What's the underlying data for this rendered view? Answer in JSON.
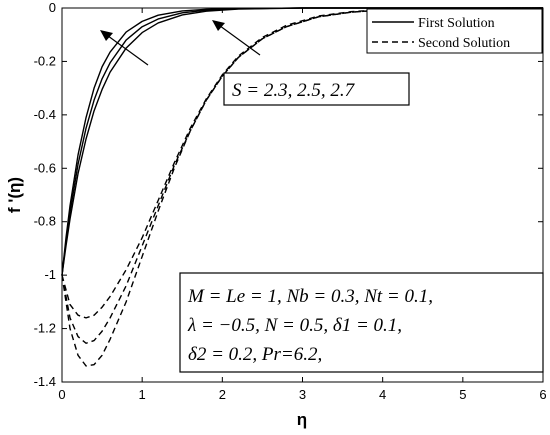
{
  "chart_data": {
    "type": "line",
    "xlabel": "η",
    "ylabel": "f '(η)",
    "xlim": [
      0,
      6
    ],
    "ylim": [
      -1.4,
      0
    ],
    "x_ticks": [
      "0",
      "1",
      "2",
      "3",
      "4",
      "5",
      "6"
    ],
    "y_ticks": [
      "0",
      "-0.2",
      "-0.4",
      "-0.6",
      "-0.8",
      "-1",
      "-1.2",
      "-1.4"
    ],
    "grid": false,
    "legend_position": "top-right",
    "legend": [
      {
        "label": "First Solution",
        "style": "solid"
      },
      {
        "label": "Second Solution",
        "style": "dashed"
      }
    ],
    "annotations": {
      "s_values": "S = 2.3, 2.5, 2.7",
      "params_line1": "M = Le = 1, Nb = 0.3, Nt = 0.1,",
      "params_line2": "λ = −0.5, N = 0.5, δ1 = 0.1,",
      "params_line3": "δ2 = 0.2, Pr=6.2,"
    },
    "series": [
      {
        "group": "first",
        "S": 2.3,
        "style": "solid",
        "x": [
          0,
          0.05,
          0.1,
          0.2,
          0.3,
          0.4,
          0.5,
          0.6,
          0.8,
          1.0,
          1.2,
          1.5,
          1.8,
          2.2,
          2.6,
          3.0,
          4.0,
          6.0
        ],
        "y": [
          -1,
          -0.86,
          -0.74,
          -0.55,
          -0.41,
          -0.3,
          -0.22,
          -0.165,
          -0.09,
          -0.05,
          -0.027,
          -0.011,
          -0.005,
          -0.002,
          -0.001,
          0,
          0,
          0
        ]
      },
      {
        "group": "first",
        "S": 2.5,
        "style": "solid",
        "x": [
          0,
          0.05,
          0.1,
          0.2,
          0.3,
          0.4,
          0.5,
          0.6,
          0.8,
          1.0,
          1.2,
          1.5,
          1.8,
          2.2,
          2.6,
          3.0,
          4.0,
          6.0
        ],
        "y": [
          -1,
          -0.875,
          -0.765,
          -0.585,
          -0.45,
          -0.345,
          -0.265,
          -0.205,
          -0.12,
          -0.07,
          -0.041,
          -0.018,
          -0.008,
          -0.003,
          -0.001,
          0,
          0,
          0
        ]
      },
      {
        "group": "first",
        "S": 2.7,
        "style": "solid",
        "x": [
          0,
          0.05,
          0.1,
          0.2,
          0.3,
          0.4,
          0.5,
          0.6,
          0.8,
          1.0,
          1.2,
          1.5,
          1.8,
          2.2,
          2.6,
          3.0,
          4.0,
          6.0
        ],
        "y": [
          -1,
          -0.89,
          -0.79,
          -0.62,
          -0.49,
          -0.385,
          -0.305,
          -0.24,
          -0.15,
          -0.092,
          -0.056,
          -0.026,
          -0.012,
          -0.004,
          -0.002,
          0,
          0,
          0
        ]
      },
      {
        "group": "second",
        "S": 2.3,
        "style": "dashed",
        "x": [
          0,
          0.1,
          0.2,
          0.3,
          0.4,
          0.5,
          0.6,
          0.8,
          1.0,
          1.2,
          1.4,
          1.6,
          1.8,
          2.0,
          2.2,
          2.5,
          2.8,
          3.2,
          3.6,
          4.0,
          5.0,
          6.0
        ],
        "y": [
          -1,
          -1.11,
          -1.15,
          -1.16,
          -1.15,
          -1.12,
          -1.08,
          -0.98,
          -0.86,
          -0.72,
          -0.58,
          -0.45,
          -0.34,
          -0.25,
          -0.18,
          -0.11,
          -0.065,
          -0.03,
          -0.014,
          -0.006,
          -0.001,
          0
        ]
      },
      {
        "group": "second",
        "S": 2.5,
        "style": "dashed",
        "x": [
          0,
          0.1,
          0.2,
          0.3,
          0.4,
          0.5,
          0.6,
          0.8,
          1.0,
          1.2,
          1.4,
          1.6,
          1.8,
          2.0,
          2.2,
          2.5,
          2.8,
          3.2,
          3.6,
          4.0,
          5.0,
          6.0
        ],
        "y": [
          -1,
          -1.16,
          -1.23,
          -1.255,
          -1.245,
          -1.21,
          -1.16,
          -1.04,
          -0.89,
          -0.74,
          -0.59,
          -0.46,
          -0.345,
          -0.255,
          -0.185,
          -0.115,
          -0.07,
          -0.033,
          -0.016,
          -0.007,
          -0.001,
          0
        ]
      },
      {
        "group": "second",
        "S": 2.7,
        "style": "dashed",
        "x": [
          0,
          0.1,
          0.2,
          0.3,
          0.4,
          0.5,
          0.6,
          0.8,
          1.0,
          1.2,
          1.4,
          1.6,
          1.8,
          2.0,
          2.2,
          2.5,
          2.8,
          3.2,
          3.6,
          4.0,
          5.0,
          6.0
        ],
        "y": [
          -1,
          -1.2,
          -1.3,
          -1.34,
          -1.335,
          -1.3,
          -1.24,
          -1.1,
          -0.93,
          -0.76,
          -0.6,
          -0.46,
          -0.345,
          -0.255,
          -0.185,
          -0.115,
          -0.07,
          -0.033,
          -0.016,
          -0.007,
          -0.001,
          0
        ]
      }
    ]
  }
}
